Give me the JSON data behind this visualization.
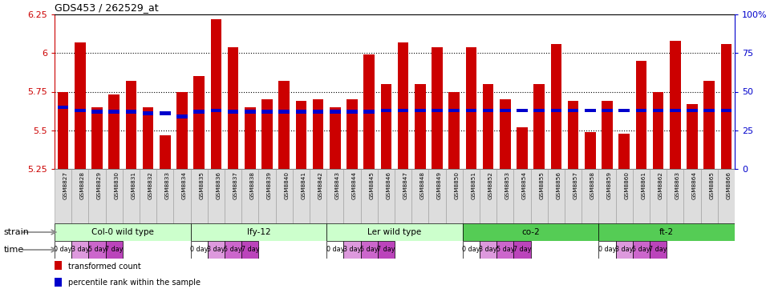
{
  "title": "GDS453 / 262529_at",
  "samples": [
    "GSM8827",
    "GSM8828",
    "GSM8829",
    "GSM8830",
    "GSM8831",
    "GSM8832",
    "GSM8833",
    "GSM8834",
    "GSM8835",
    "GSM8836",
    "GSM8837",
    "GSM8838",
    "GSM8839",
    "GSM8840",
    "GSM8841",
    "GSM8842",
    "GSM8843",
    "GSM8844",
    "GSM8845",
    "GSM8846",
    "GSM8847",
    "GSM8848",
    "GSM8849",
    "GSM8850",
    "GSM8851",
    "GSM8852",
    "GSM8853",
    "GSM8854",
    "GSM8855",
    "GSM8856",
    "GSM8857",
    "GSM8858",
    "GSM8859",
    "GSM8860",
    "GSM8861",
    "GSM8862",
    "GSM8863",
    "GSM8864",
    "GSM8865",
    "GSM8866"
  ],
  "bar_values": [
    5.75,
    6.07,
    5.65,
    5.73,
    5.82,
    5.65,
    5.47,
    5.75,
    5.85,
    6.22,
    6.04,
    5.65,
    5.7,
    5.82,
    5.69,
    5.7,
    5.65,
    5.7,
    5.99,
    5.8,
    6.07,
    5.8,
    6.04,
    5.75,
    6.04,
    5.8,
    5.7,
    5.52,
    5.8,
    6.06,
    5.69,
    5.49,
    5.69,
    5.48,
    5.95,
    5.75,
    6.08,
    5.67,
    5.82,
    6.06
  ],
  "percentile_values": [
    5.65,
    5.63,
    5.62,
    5.62,
    5.62,
    5.61,
    5.61,
    5.59,
    5.62,
    5.63,
    5.62,
    5.62,
    5.62,
    5.62,
    5.62,
    5.62,
    5.62,
    5.62,
    5.62,
    5.63,
    5.63,
    5.63,
    5.63,
    5.63,
    5.63,
    5.63,
    5.63,
    5.63,
    5.63,
    5.63,
    5.63,
    5.63,
    5.63,
    5.63,
    5.63,
    5.63,
    5.63,
    5.63,
    5.63,
    5.63
  ],
  "ylim": [
    5.25,
    6.25
  ],
  "yticks": [
    5.25,
    5.5,
    5.75,
    6.0,
    6.25
  ],
  "ytick_labels": [
    "5.25",
    "5.5",
    "5.75",
    "6",
    "6.25"
  ],
  "right_yticks": [
    0,
    25,
    50,
    75,
    100
  ],
  "right_ytick_labels": [
    "0",
    "25",
    "50",
    "75",
    "100%"
  ],
  "bar_color": "#cc0000",
  "percentile_color": "#0000cc",
  "strains": [
    {
      "label": "Col-0 wild type",
      "start": 0,
      "end": 8,
      "color": "#ccffcc"
    },
    {
      "label": "lfy-12",
      "start": 8,
      "end": 16,
      "color": "#ccffcc"
    },
    {
      "label": "Ler wild type",
      "start": 16,
      "end": 24,
      "color": "#ccffcc"
    },
    {
      "label": "co-2",
      "start": 24,
      "end": 32,
      "color": "#55cc55"
    },
    {
      "label": "ft-2",
      "start": 32,
      "end": 40,
      "color": "#55cc55"
    }
  ],
  "time_labels": [
    "0 day",
    "3 day",
    "5 day",
    "7 day"
  ],
  "time_colors": [
    "#ffffff",
    "#dd99dd",
    "#cc66cc",
    "#bb44bb"
  ],
  "grid_yticks": [
    5.5,
    5.75,
    6.0
  ],
  "legend_items": [
    {
      "color": "#cc0000",
      "label": "transformed count"
    },
    {
      "color": "#0000cc",
      "label": "percentile rank within the sample"
    }
  ]
}
